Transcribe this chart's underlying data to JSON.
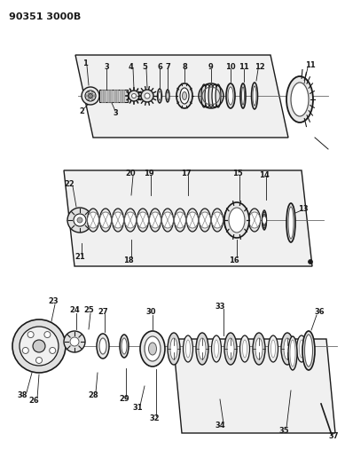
{
  "title": "90351 3000B",
  "bg_color": "#ffffff",
  "lc": "#1a1a1a",
  "fig_width": 3.89,
  "fig_height": 5.33,
  "dpi": 100
}
